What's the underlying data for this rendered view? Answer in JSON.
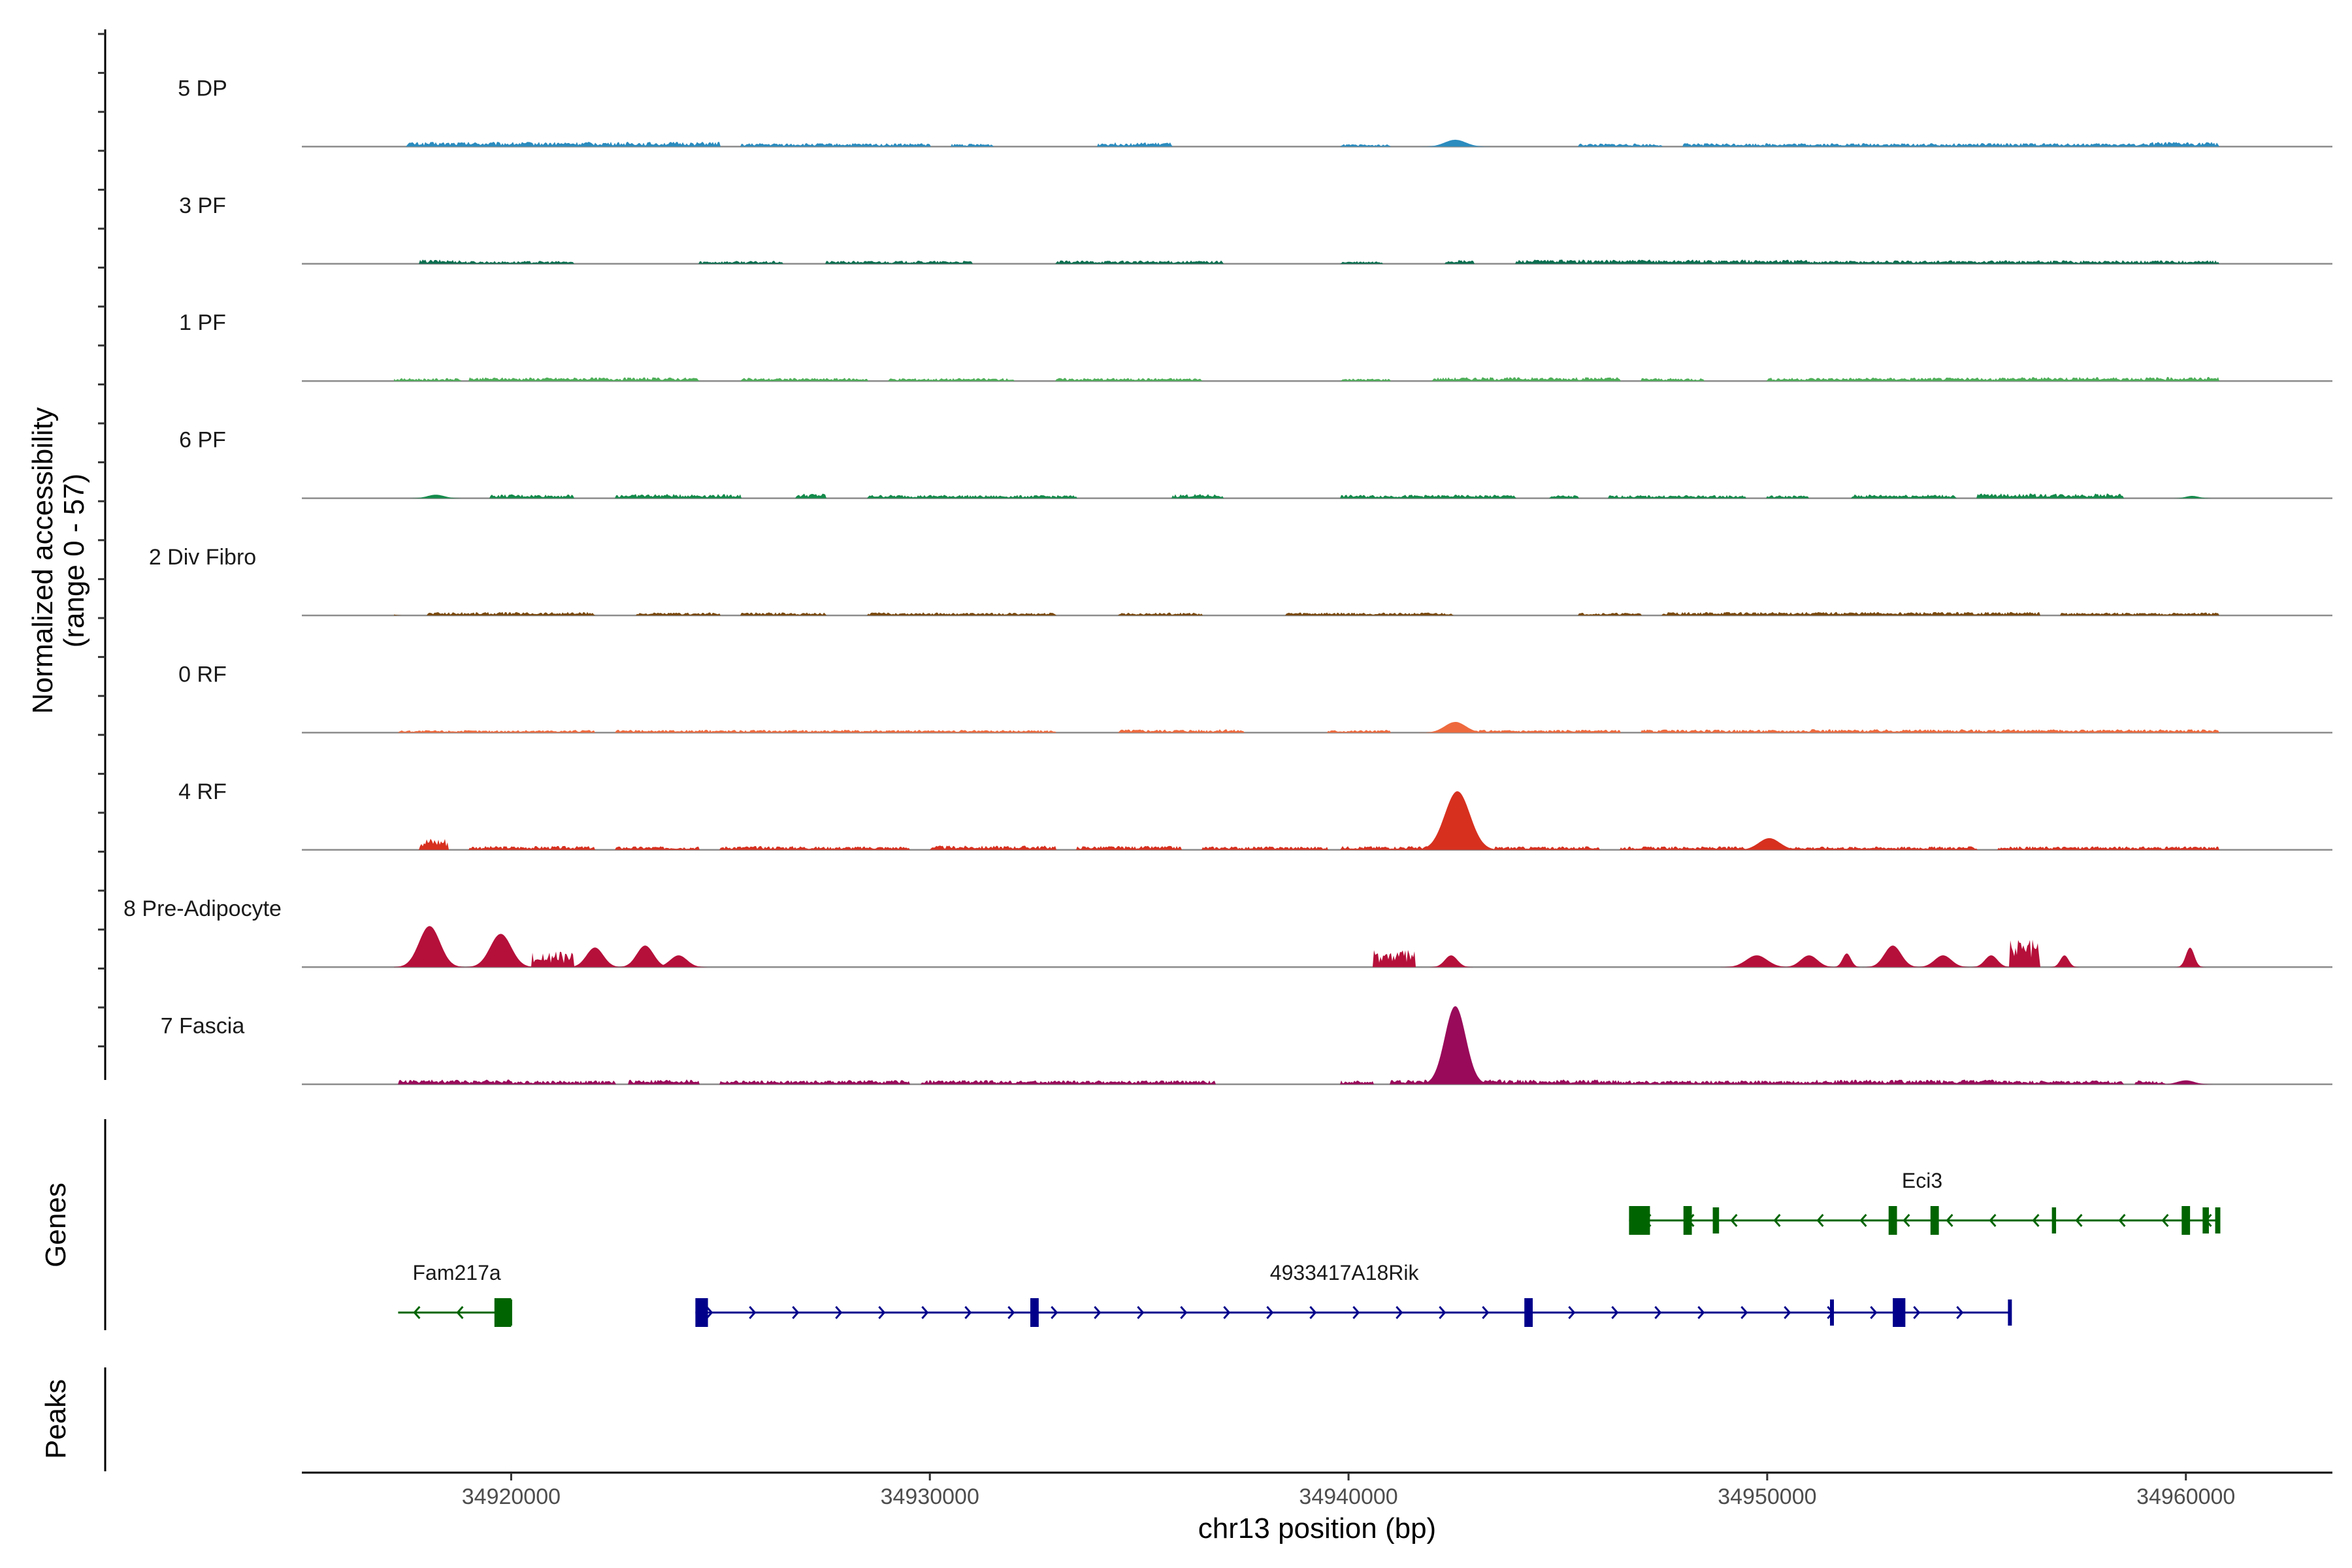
{
  "chart_data": {
    "type": "coverage-track",
    "ylabel_line1": "Normalized accessibility",
    "ylabel_line2": "(range 0 - 57)",
    "yrange": [
      0,
      57
    ],
    "xlabel": "chr13 position (bp)",
    "xlim": [
      34915000,
      34963500
    ],
    "xticks": [
      34920000,
      34930000,
      34940000,
      34950000,
      34960000
    ],
    "xtick_labels": [
      "34920000",
      "34930000",
      "34940000",
      "34950000",
      "34960000"
    ],
    "tracks": [
      {
        "name": "5 DP",
        "color": "#2b8cbe",
        "peaks": [
          [
            34917500,
            34925000,
            2.5
          ],
          [
            34925500,
            34930000,
            1.8
          ],
          [
            34930500,
            34931500,
            1.5
          ],
          [
            34934000,
            34935800,
            2.2
          ],
          [
            34939800,
            34941000,
            1.2
          ],
          [
            34942300,
            34942800,
            3.5
          ],
          [
            34945500,
            34947500,
            1.6
          ],
          [
            34948000,
            34953000,
            1.8
          ],
          [
            34953000,
            34959000,
            1.8
          ],
          [
            34959000,
            34960800,
            2.4
          ]
        ]
      },
      {
        "name": "3 PF",
        "color": "#0b6e4f",
        "peaks": [
          [
            34917800,
            34918800,
            2.2
          ],
          [
            34918800,
            34921500,
            1.5
          ],
          [
            34924500,
            34926500,
            1.5
          ],
          [
            34927500,
            34931000,
            1.6
          ],
          [
            34933000,
            34937000,
            1.7
          ],
          [
            34939800,
            34940800,
            1.3
          ],
          [
            34942300,
            34943000,
            2.0
          ],
          [
            34944000,
            34951000,
            2.2
          ],
          [
            34951000,
            34960800,
            1.8
          ]
        ]
      },
      {
        "name": "1 PF",
        "color": "#4dae58",
        "peaks": [
          [
            34917200,
            34918800,
            1.5
          ],
          [
            34919000,
            34924500,
            1.9
          ],
          [
            34925500,
            34928500,
            1.6
          ],
          [
            34929000,
            34932000,
            1.5
          ],
          [
            34933000,
            34936500,
            1.6
          ],
          [
            34939800,
            34941000,
            1.3
          ],
          [
            34942000,
            34946500,
            2.0
          ],
          [
            34947000,
            34948500,
            1.6
          ],
          [
            34950000,
            34955500,
            1.8
          ],
          [
            34955500,
            34960800,
            2.1
          ]
        ]
      },
      {
        "name": "6 PF",
        "color": "#138a4a",
        "peaks": [
          [
            34918000,
            34918400,
            1.8
          ],
          [
            34919500,
            34921500,
            2.0
          ],
          [
            34922500,
            34925500,
            2.2
          ],
          [
            34926800,
            34927500,
            2.5
          ],
          [
            34928500,
            34931000,
            1.8
          ],
          [
            34931000,
            34933500,
            1.6
          ],
          [
            34935800,
            34937000,
            2.2
          ],
          [
            34939800,
            34944000,
            1.8
          ],
          [
            34944800,
            34945500,
            1.6
          ],
          [
            34946200,
            34949500,
            1.6
          ],
          [
            34950000,
            34951000,
            1.5
          ],
          [
            34952000,
            34954500,
            2.0
          ],
          [
            34955000,
            34958500,
            2.5
          ],
          [
            34960000,
            34960300,
            1.2
          ]
        ]
      },
      {
        "name": "2 Div Fibro",
        "color": "#7a4a10",
        "peaks": [
          [
            34917000,
            34917200,
            0.8
          ],
          [
            34918000,
            34922000,
            1.8
          ],
          [
            34923000,
            34925000,
            1.5
          ],
          [
            34925500,
            34927500,
            1.6
          ],
          [
            34928500,
            34930500,
            1.6
          ],
          [
            34930500,
            34933000,
            1.4
          ],
          [
            34934500,
            34936500,
            1.5
          ],
          [
            34938500,
            34940500,
            1.6
          ],
          [
            34940500,
            34942500,
            1.5
          ],
          [
            34945500,
            34947000,
            1.4
          ],
          [
            34947500,
            34953000,
            1.8
          ],
          [
            34953000,
            34956500,
            1.8
          ],
          [
            34957000,
            34960800,
            1.5
          ]
        ]
      },
      {
        "name": "0 RF",
        "color": "#ee6a3e",
        "peaks": [
          [
            34917300,
            34920000,
            1.3
          ],
          [
            34920000,
            34922000,
            1.4
          ],
          [
            34922500,
            34926500,
            1.5
          ],
          [
            34926500,
            34930500,
            1.5
          ],
          [
            34930500,
            34933000,
            1.4
          ],
          [
            34934500,
            34937500,
            1.8
          ],
          [
            34939500,
            34941000,
            1.4
          ],
          [
            34942300,
            34942800,
            5.5
          ],
          [
            34943000,
            34946500,
            1.5
          ],
          [
            34947000,
            34951000,
            1.6
          ],
          [
            34951000,
            34955500,
            1.8
          ],
          [
            34955500,
            34960800,
            1.7
          ]
        ]
      },
      {
        "name": "4 RF",
        "color": "#d7301f",
        "peaks": [
          [
            34917800,
            34918500,
            6.5
          ],
          [
            34919000,
            34922000,
            2.0
          ],
          [
            34922500,
            34924500,
            1.8
          ],
          [
            34925000,
            34927000,
            2.0
          ],
          [
            34927000,
            34929500,
            1.8
          ],
          [
            34930000,
            34933000,
            2.2
          ],
          [
            34933500,
            34936000,
            2.0
          ],
          [
            34936500,
            34939500,
            1.8
          ],
          [
            34939800,
            34942000,
            2.0
          ],
          [
            34942300,
            34942900,
            30.0
          ],
          [
            34943500,
            34946000,
            1.8
          ],
          [
            34946500,
            34949500,
            1.8
          ],
          [
            34949800,
            34950300,
            6.0
          ],
          [
            34950500,
            34955000,
            1.8
          ],
          [
            34955500,
            34960800,
            1.8
          ]
        ]
      },
      {
        "name": "8 Pre-Adipocyte",
        "color": "#b5103a",
        "peaks": [
          [
            34917800,
            34918300,
            21.0
          ],
          [
            34919500,
            34920000,
            17.0
          ],
          [
            34920500,
            34921500,
            8.0
          ],
          [
            34921800,
            34922200,
            10.0
          ],
          [
            34923000,
            34923400,
            11.0
          ],
          [
            34923800,
            34924200,
            6.0
          ],
          [
            34940600,
            34941600,
            9.0
          ],
          [
            34942300,
            34942600,
            6.0
          ],
          [
            34949500,
            34950000,
            6.0
          ],
          [
            34950800,
            34951200,
            6.0
          ],
          [
            34951800,
            34952000,
            7.0
          ],
          [
            34952800,
            34953200,
            11.0
          ],
          [
            34954000,
            34954400,
            6.0
          ],
          [
            34955200,
            34955500,
            6.0
          ],
          [
            34955800,
            34956500,
            15.0
          ],
          [
            34957000,
            34957200,
            6.0
          ],
          [
            34960000,
            34960200,
            10.0
          ]
        ]
      },
      {
        "name": "7 Fascia",
        "color": "#990a5a",
        "peaks": [
          [
            34917300,
            34920000,
            2.5
          ],
          [
            34920000,
            34922500,
            2.0
          ],
          [
            34922800,
            34924500,
            2.5
          ],
          [
            34925000,
            34927500,
            2.0
          ],
          [
            34927500,
            34929500,
            2.2
          ],
          [
            34929800,
            34931500,
            2.2
          ],
          [
            34931500,
            34934500,
            2.0
          ],
          [
            34934500,
            34936800,
            2.0
          ],
          [
            34939800,
            34940600,
            2.0
          ],
          [
            34941000,
            34942200,
            2.5
          ],
          [
            34942300,
            34942800,
            40.0
          ],
          [
            34942800,
            34946500,
            2.5
          ],
          [
            34946500,
            34951000,
            2.0
          ],
          [
            34951000,
            34955500,
            2.5
          ],
          [
            34955500,
            34958500,
            2.0
          ],
          [
            34958800,
            34959500,
            2.0
          ],
          [
            34959800,
            34960200,
            2.0
          ]
        ]
      }
    ],
    "genes": [
      {
        "name": "Eci3",
        "strand": "-",
        "color": "#006400",
        "row": 0,
        "start": 34946700,
        "end": 34960800,
        "exons": [
          [
            34946700,
            34947200
          ],
          [
            34948000,
            34948200
          ],
          [
            34948700,
            34948850
          ],
          [
            34952900,
            34953100
          ],
          [
            34953900,
            34954100
          ],
          [
            34956800,
            34956900
          ],
          [
            34959900,
            34960100
          ],
          [
            34960400,
            34960550
          ],
          [
            34960700,
            34960800
          ]
        ]
      },
      {
        "name": "Fam217a",
        "strand": "-",
        "color": "#006400",
        "row": 1,
        "start": 34917300,
        "end": 34920000,
        "exons": [
          [
            34919600,
            34920000
          ]
        ]
      },
      {
        "name": "4933417A18Rik",
        "strand": "+",
        "color": "#00008b",
        "row": 1,
        "start": 34924400,
        "end": 34955800,
        "exons": [
          [
            34924400,
            34924700
          ],
          [
            34932400,
            34932600
          ],
          [
            34944200,
            34944400
          ],
          [
            34951500,
            34951550
          ],
          [
            34953000,
            34953300
          ],
          [
            34955750,
            34955800
          ]
        ]
      }
    ],
    "panel_labels": {
      "genes": "Genes",
      "peaks": "Peaks"
    }
  }
}
